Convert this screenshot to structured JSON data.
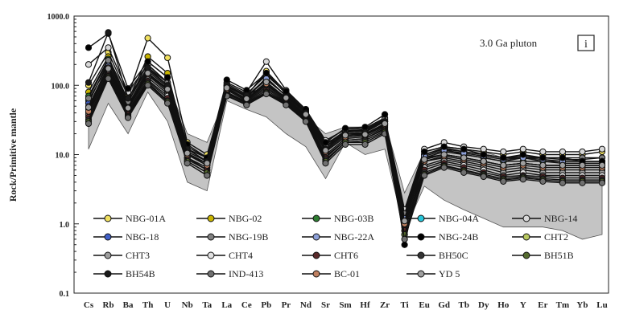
{
  "chart_data": {
    "type": "line",
    "ylabel": "Rock/Primitive mantle",
    "yscale": "log",
    "ylim": [
      0.1,
      1000
    ],
    "y_ticks": [
      "0.1",
      "1.0",
      "10.0",
      "100.0",
      "1000.0"
    ],
    "categories": [
      "Cs",
      "Rb",
      "Ba",
      "Th",
      "U",
      "Nb",
      "Ta",
      "La",
      "Ce",
      "Pb",
      "Pr",
      "Nd",
      "Sr",
      "Sm",
      "Hf",
      "Zr",
      "Ti",
      "Eu",
      "Gd",
      "Tb",
      "Dy",
      "Ho",
      "Y",
      "Er",
      "Tm",
      "Yb",
      "Lu"
    ],
    "annotation": "3.0 Ga pluton",
    "panel_label": "i",
    "legend_position": "bottom",
    "reference_field": {
      "upper": [
        38,
        240,
        75,
        190,
        110,
        20,
        15,
        75,
        60,
        95,
        55,
        35,
        20,
        25,
        25,
        30,
        2.8,
        11,
        13,
        12,
        11,
        9,
        10,
        9,
        8.5,
        8,
        8
      ],
      "lower": [
        12,
        55,
        20,
        80,
        30,
        4,
        3,
        60,
        45,
        35,
        20,
        13,
        4.5,
        15,
        10,
        12,
        0.8,
        3.5,
        2.2,
        1.6,
        1.2,
        0.9,
        0.9,
        0.9,
        0.8,
        0.6,
        0.7
      ]
    },
    "series": [
      {
        "name": "NBG-01A",
        "color": "#f0e060",
        "values": [
          100,
          300,
          70,
          480,
          250,
          15,
          10,
          100,
          70,
          160,
          80,
          42,
          14,
          22,
          22,
          30,
          1.5,
          11,
          13,
          12,
          11,
          10,
          11,
          10,
          10,
          10,
          11
        ]
      },
      {
        "name": "NBG-02",
        "color": "#c8b400",
        "values": [
          80,
          260,
          60,
          260,
          150,
          12,
          8,
          90,
          65,
          130,
          70,
          40,
          13,
          20,
          20,
          28,
          1.3,
          10,
          12,
          10,
          9,
          8,
          9,
          8,
          8,
          8,
          8
        ]
      },
      {
        "name": "NBG-03B",
        "color": "#2e7d32",
        "values": [
          70,
          240,
          55,
          220,
          130,
          12,
          9,
          95,
          68,
          120,
          72,
          41,
          12,
          21,
          23,
          31,
          1.2,
          9,
          11,
          10,
          9,
          8,
          8,
          8,
          7.5,
          7.5,
          7.5
        ]
      },
      {
        "name": "NBG-04A",
        "color": "#26c6da",
        "values": [
          60,
          200,
          50,
          150,
          90,
          10,
          7,
          85,
          60,
          110,
          65,
          38,
          15,
          19,
          20,
          27,
          1.1,
          9,
          10,
          9,
          8,
          7,
          7.5,
          7,
          7,
          7,
          7
        ]
      },
      {
        "name": "NBG-14",
        "color": "#d8d8d8",
        "values": [
          200,
          350,
          80,
          200,
          110,
          13,
          9,
          110,
          80,
          220,
          85,
          45,
          16,
          23,
          24,
          34,
          1.6,
          12,
          15,
          13,
          12,
          11,
          12,
          11,
          11,
          11,
          12
        ]
      },
      {
        "name": "NBG-18",
        "color": "#4060c8",
        "values": [
          55,
          220,
          52,
          170,
          100,
          11,
          8,
          100,
          72,
          150,
          75,
          42,
          14,
          21,
          22,
          32,
          1.3,
          10,
          12,
          11,
          10,
          9,
          9,
          9,
          8.5,
          8.5,
          9
        ]
      },
      {
        "name": "NBG-19B",
        "color": "#808080",
        "values": [
          65,
          230,
          58,
          180,
          110,
          12,
          8,
          105,
          75,
          140,
          78,
          43,
          13,
          22,
          23,
          33,
          1.4,
          10,
          12.5,
          11,
          10,
          9,
          9.5,
          9,
          9,
          9,
          9
        ]
      },
      {
        "name": "NBG-22A",
        "color": "#8da0d8",
        "values": [
          50,
          190,
          48,
          160,
          95,
          10,
          7.5,
          98,
          70,
          125,
          70,
          40,
          12,
          20,
          21,
          30,
          1.2,
          9.5,
          11.5,
          10.5,
          9.5,
          8.5,
          9,
          8.5,
          8,
          8,
          8
        ]
      },
      {
        "name": "NBG-24B",
        "color": "#000000",
        "values": [
          350,
          560,
          90,
          220,
          130,
          14,
          9,
          120,
          85,
          150,
          82,
          45,
          15,
          24,
          25,
          38,
          0.5,
          11,
          13,
          12,
          10,
          9,
          10,
          9,
          9,
          8,
          8
        ]
      },
      {
        "name": "CHT2",
        "color": "#b8c860",
        "values": [
          45,
          170,
          45,
          140,
          80,
          10,
          7,
          90,
          62,
          100,
          62,
          36,
          11,
          18,
          19,
          26,
          1.0,
          8,
          9,
          8,
          7,
          6,
          6.5,
          6,
          6,
          6,
          6
        ]
      },
      {
        "name": "CHT3",
        "color": "#9e9e9e",
        "values": [
          40,
          160,
          42,
          130,
          75,
          9,
          6.5,
          85,
          60,
          95,
          60,
          35,
          10,
          17,
          18,
          25,
          0.9,
          7,
          8.5,
          7.5,
          6.5,
          5.5,
          6,
          5.5,
          5.5,
          5.5,
          5.5
        ]
      },
      {
        "name": "CHT4",
        "color": "#e0e0e0",
        "values": [
          38,
          150,
          40,
          120,
          70,
          9,
          6,
          80,
          58,
          90,
          58,
          34,
          9.5,
          16,
          17,
          24,
          0.8,
          6.5,
          8,
          7,
          6,
          5,
          5.5,
          5,
          5,
          5,
          5
        ]
      },
      {
        "name": "CHT6",
        "color": "#5a2a2a",
        "values": [
          35,
          140,
          38,
          115,
          65,
          8.5,
          6,
          78,
          56,
          85,
          56,
          33,
          9,
          16,
          17,
          23,
          0.8,
          6,
          7.5,
          6.5,
          5.5,
          4.8,
          5,
          4.8,
          4.6,
          4.6,
          4.6
        ]
      },
      {
        "name": "BH50C",
        "color": "#333333",
        "values": [
          32,
          135,
          36,
          110,
          60,
          8,
          5.5,
          75,
          55,
          80,
          55,
          32,
          8.5,
          15,
          16,
          22,
          0.7,
          5.5,
          7,
          6,
          5.2,
          4.5,
          4.8,
          4.5,
          4.3,
          4.3,
          4.3
        ]
      },
      {
        "name": "BH51B",
        "color": "#556b2f",
        "values": [
          30,
          130,
          35,
          105,
          58,
          8,
          5.5,
          72,
          53,
          78,
          53,
          31,
          8,
          15,
          15,
          21,
          0.7,
          5.2,
          6.8,
          5.8,
          5,
          4.3,
          4.6,
          4.3,
          4.1,
          4.1,
          4.1
        ]
      },
      {
        "name": "BH54B",
        "color": "#1a1a1a",
        "values": [
          110,
          580,
          65,
          180,
          100,
          12,
          8,
          100,
          72,
          100,
          68,
          40,
          12,
          20,
          21,
          30,
          1.0,
          8.5,
          10,
          9,
          8,
          7,
          7.5,
          7,
          7,
          7,
          7
        ]
      },
      {
        "name": "IND-413",
        "color": "#707070",
        "values": [
          28,
          125,
          34,
          100,
          55,
          7.5,
          5,
          70,
          52,
          75,
          52,
          30,
          7.5,
          14,
          14,
          20,
          0.6,
          5,
          6.5,
          5.5,
          4.8,
          4.1,
          4.4,
          4.1,
          3.9,
          3.9,
          3.9
        ]
      },
      {
        "name": "BC-01",
        "color": "#c08060",
        "values": [
          42,
          180,
          46,
          145,
          85,
          10,
          7,
          88,
          63,
          105,
          64,
          37,
          11,
          18,
          19,
          27,
          1.0,
          8,
          9.5,
          8.5,
          7.5,
          6.5,
          7,
          6.5,
          6.5,
          6.5,
          6.5
        ]
      },
      {
        "name": "YD 5",
        "color": "#a0a0a0",
        "values": [
          48,
          175,
          47,
          150,
          88,
          10.5,
          7.5,
          92,
          64,
          112,
          66,
          38,
          11.5,
          19,
          19.5,
          28,
          1.1,
          8.5,
          10,
          9,
          8,
          7,
          7.5,
          7,
          7,
          7,
          7
        ]
      }
    ]
  }
}
